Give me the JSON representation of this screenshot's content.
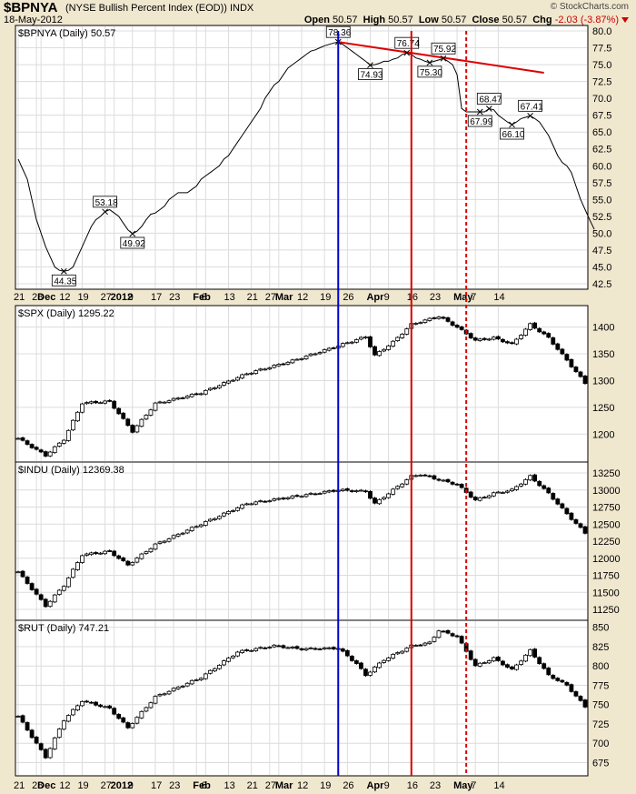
{
  "header": {
    "symbol": "$BPNYA",
    "name": "(NYSE Bullish Percent Index (EOD))",
    "exchange": "INDX",
    "date": "18-May-2012",
    "copyright": "© StockCharts.com",
    "open_label": "Open",
    "open": "50.57",
    "high_label": "High",
    "high": "50.57",
    "low_label": "Low",
    "low": "50.57",
    "close_label": "Close",
    "close": "50.57",
    "chg_label": "Chg",
    "chg": "-2.03 (-3.87%)"
  },
  "colors": {
    "background": "#f0e7cf",
    "panel": "#ffffff",
    "blue_line": "#0000cc",
    "red_line": "#dd0000",
    "grid": "#d8d8d8"
  },
  "chart_data": [
    {
      "type": "line",
      "title": "$BPNYA (Daily) 50.57",
      "ylim": [
        42.5,
        80.0
      ],
      "y_ticks": [
        "80.0",
        "77.5",
        "75.0",
        "72.5",
        "70.0",
        "67.5",
        "65.0",
        "62.5",
        "60.0",
        "57.5",
        "55.0",
        "52.5",
        "50.0",
        "47.5",
        "45.0",
        "42.5"
      ],
      "x_ticks": [
        "21",
        "28",
        "Dec",
        "12",
        "19",
        "27",
        "2012",
        "9",
        "17",
        "23",
        "Feb",
        "6",
        "13",
        "21",
        "27",
        "Mar",
        "12",
        "19",
        "26",
        "Apr",
        "9",
        "16",
        "23",
        "May",
        "7",
        "14"
      ],
      "series": [
        {
          "values": [
            61,
            59.5,
            58,
            55,
            52,
            50,
            48,
            46.5,
            45,
            44.5,
            44.35,
            44.5,
            45,
            46.5,
            48,
            49.5,
            51,
            52,
            52.5,
            53.18,
            53.5,
            53,
            52.5,
            51.5,
            50.5,
            49.92,
            50.3,
            51,
            52,
            52.8,
            53,
            53.5,
            54,
            55,
            55.5,
            56,
            56,
            56,
            56.5,
            57,
            58,
            58.5,
            59,
            59.5,
            60,
            61,
            61.5,
            62.5,
            63.5,
            64.5,
            65.5,
            66.5,
            67.5,
            68.5,
            70,
            71,
            72,
            72.5,
            73.5,
            74.5,
            75,
            75.5,
            76,
            76.5,
            77,
            77.2,
            77.5,
            77.8,
            78,
            78.2,
            78.36,
            78,
            77.5,
            77,
            76.5,
            76,
            75.5,
            74.93,
            75,
            75.2,
            75.5,
            75.5,
            75.8,
            76,
            76.5,
            76.74,
            76.5,
            76,
            75.8,
            75.5,
            75.3,
            75.5,
            75.7,
            75.92,
            75.5,
            75,
            73.5,
            68.5,
            68,
            68,
            68,
            67.99,
            68,
            68.47,
            68.3,
            67.5,
            67,
            66.5,
            66.1,
            66.5,
            67,
            67.2,
            67.41,
            67,
            66.5,
            65.5,
            64.5,
            63,
            61.5,
            60.5,
            60,
            59,
            57,
            55,
            53.5,
            52,
            50.57
          ],
          "annotations": [
            {
              "label": "78.36",
              "index": 70
            },
            {
              "label": "74.93",
              "index": 77
            },
            {
              "label": "76.74",
              "index": 85
            },
            {
              "label": "75.30",
              "index": 90
            },
            {
              "label": "75.92",
              "index": 93
            },
            {
              "label": "67.99",
              "index": 101
            },
            {
              "label": "68.47",
              "index": 103
            },
            {
              "label": "66.10",
              "index": 108
            },
            {
              "label": "67.41",
              "index": 112
            },
            {
              "label": "53.18",
              "index": 19
            },
            {
              "label": "49.92",
              "index": 25
            },
            {
              "label": "44.35",
              "index": 10
            }
          ]
        }
      ],
      "trendline": {
        "from": [
          70,
          78.36
        ],
        "to": [
          115,
          73.8
        ]
      }
    },
    {
      "type": "bar",
      "title": "$SPX (Daily) 1295.22",
      "ylim": [
        1158,
        1430
      ],
      "y_ticks": [
        "1400",
        "1350",
        "1300",
        "1250",
        "1200"
      ],
      "start": 1192,
      "close": 1295.22,
      "anchors": [
        [
          0,
          1192
        ],
        [
          6,
          1160
        ],
        [
          10,
          1190
        ],
        [
          14,
          1258
        ],
        [
          20,
          1261
        ],
        [
          25,
          1205
        ],
        [
          30,
          1257
        ],
        [
          40,
          1277
        ],
        [
          50,
          1313
        ],
        [
          60,
          1337
        ],
        [
          70,
          1365
        ],
        [
          76,
          1382
        ],
        [
          78,
          1347
        ],
        [
          82,
          1372
        ],
        [
          86,
          1405
        ],
        [
          88,
          1410
        ],
        [
          92,
          1420
        ],
        [
          96,
          1400
        ],
        [
          100,
          1375
        ],
        [
          104,
          1380
        ],
        [
          108,
          1368
        ],
        [
          112,
          1405
        ],
        [
          116,
          1380
        ],
        [
          120,
          1338
        ],
        [
          124,
          1295.22
        ]
      ]
    },
    {
      "type": "bar",
      "title": "$INDU (Daily) 12369.38",
      "ylim": [
        11170,
        13330
      ],
      "y_ticks": [
        "13250",
        "13000",
        "12750",
        "12500",
        "12250",
        "12000",
        "11750",
        "11500",
        "11250"
      ],
      "start": 11800,
      "close": 12369.38,
      "anchors": [
        [
          0,
          11800
        ],
        [
          6,
          11300
        ],
        [
          10,
          11600
        ],
        [
          14,
          12050
        ],
        [
          20,
          12100
        ],
        [
          24,
          11900
        ],
        [
          30,
          12200
        ],
        [
          40,
          12500
        ],
        [
          50,
          12800
        ],
        [
          60,
          12900
        ],
        [
          70,
          13000
        ],
        [
          76,
          12980
        ],
        [
          78,
          12800
        ],
        [
          82,
          13000
        ],
        [
          86,
          13200
        ],
        [
          88,
          13230
        ],
        [
          92,
          13150
        ],
        [
          96,
          13080
        ],
        [
          100,
          12850
        ],
        [
          104,
          12950
        ],
        [
          108,
          13000
        ],
        [
          112,
          13200
        ],
        [
          116,
          12950
        ],
        [
          120,
          12650
        ],
        [
          124,
          12369.38
        ]
      ]
    },
    {
      "type": "bar",
      "title": "$RUT (Daily) 747.21",
      "ylim": [
        665,
        852
      ],
      "y_ticks": [
        "850",
        "825",
        "800",
        "775",
        "750",
        "725",
        "700",
        "675"
      ],
      "start": 735,
      "close": 747.21,
      "anchors": [
        [
          0,
          735
        ],
        [
          6,
          682
        ],
        [
          10,
          730
        ],
        [
          14,
          755
        ],
        [
          20,
          745
        ],
        [
          24,
          720
        ],
        [
          30,
          760
        ],
        [
          40,
          785
        ],
        [
          48,
          818
        ],
        [
          56,
          826
        ],
        [
          62,
          822
        ],
        [
          70,
          823
        ],
        [
          74,
          803
        ],
        [
          76,
          788
        ],
        [
          80,
          808
        ],
        [
          86,
          826
        ],
        [
          90,
          830
        ],
        [
          92,
          846
        ],
        [
          96,
          838
        ],
        [
          100,
          800
        ],
        [
          104,
          810
        ],
        [
          108,
          795
        ],
        [
          112,
          820
        ],
        [
          116,
          788
        ],
        [
          120,
          775
        ],
        [
          124,
          747.21
        ]
      ]
    }
  ]
}
